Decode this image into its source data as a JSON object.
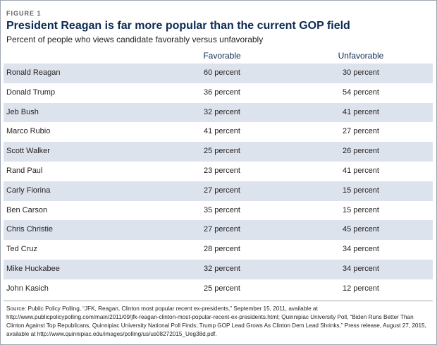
{
  "figure_label": "FIGURE 1",
  "title": "President Reagan is far more popular than the current GOP field",
  "subtitle": "Percent of people who views candidate favorably versus unfavorably",
  "chart_data": {
    "type": "table",
    "title": "President Reagan is far more popular than the current GOP field",
    "columns": [
      "",
      "Favorable",
      "Unfavorable"
    ],
    "rows": [
      {
        "name": "Ronald Reagan",
        "favorable": "60 percent",
        "unfavorable": "30 percent"
      },
      {
        "name": "Donald Trump",
        "favorable": "36 percent",
        "unfavorable": "54 percent"
      },
      {
        "name": "Jeb Bush",
        "favorable": "32 percent",
        "unfavorable": "41 percent"
      },
      {
        "name": "Marco Rubio",
        "favorable": "41 percent",
        "unfavorable": "27 percent"
      },
      {
        "name": "Scott Walker",
        "favorable": "25 percent",
        "unfavorable": "26 percent"
      },
      {
        "name": "Rand Paul",
        "favorable": "23 percent",
        "unfavorable": "41 percent"
      },
      {
        "name": "Carly Fiorina",
        "favorable": "27 percent",
        "unfavorable": "15 percent"
      },
      {
        "name": "Ben Carson",
        "favorable": "35 percent",
        "unfavorable": "15 percent"
      },
      {
        "name": "Chris Christie",
        "favorable": "27 percent",
        "unfavorable": "45 percent"
      },
      {
        "name": "Ted Cruz",
        "favorable": "28 percent",
        "unfavorable": "34 percent"
      },
      {
        "name": "Mike Huckabee",
        "favorable": "32 percent",
        "unfavorable": "34 percent"
      },
      {
        "name": "John Kasich",
        "favorable": "25 percent",
        "unfavorable": "12 percent"
      }
    ]
  },
  "source": "Source: Public Policy Polling, “JFK, Reagan, Clinton most popular recent ex-presidents,” September 15, 2011, available at http://www.publicpolicypolling.com/main/2011/09/jfk-reagan-clinton-most-popular-recent-ex-presidents.html; Quinnipiac University Poll, “Biden Runs Better Than Clinton Against Top Republicans, Quinnipiac University National Poll Finds; Trump GOP Lead Grows As Clinton Dem Lead Shrinks,” Press release, August 27, 2015, available at http://www.quinnipiac.edu/images/polling/us/us08272015_Ueg38d.pdf.",
  "colors": {
    "title": "#0c2b53",
    "row_shade": "#dde3ec",
    "border": "#9ea7b2"
  }
}
